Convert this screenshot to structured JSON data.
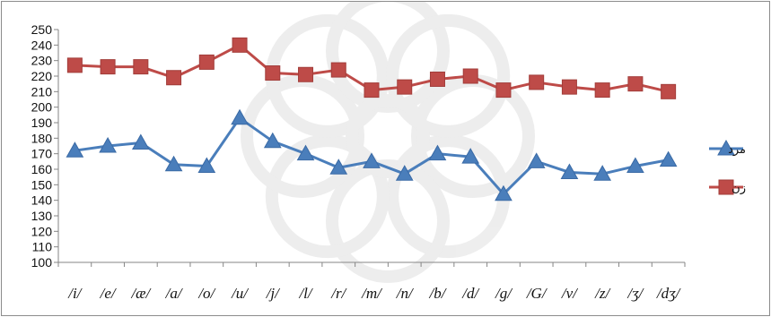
{
  "chart_data": {
    "type": "line",
    "title": "",
    "xlabel": "",
    "ylabel": "",
    "ylim": [
      100,
      250
    ],
    "ytick_step": 10,
    "grid": false,
    "legend_position": "right",
    "categories": [
      "/i/",
      "/e/",
      "/æ/",
      "/a/",
      "/o/",
      "/u/",
      "/j/",
      "/l/",
      "/r/",
      "/m/",
      "/n/",
      "/b/",
      "/d/",
      "/g/",
      "/G/",
      "/v/",
      "/z/",
      "/ʒ/",
      "/dʒ/"
    ],
    "series": [
      {
        "name": "مرد",
        "color": "#4a7ebb",
        "marker": "triangle",
        "values": [
          172,
          175,
          177,
          163,
          162,
          193,
          178,
          170,
          161,
          165,
          157,
          170,
          168,
          144,
          165,
          158,
          157,
          162,
          166
        ]
      },
      {
        "name": "زن",
        "color": "#be4b48",
        "marker": "square",
        "values": [
          227,
          226,
          226,
          219,
          229,
          240,
          222,
          221,
          224,
          211,
          213,
          218,
          220,
          211,
          216,
          213,
          211,
          215,
          210
        ]
      }
    ]
  }
}
